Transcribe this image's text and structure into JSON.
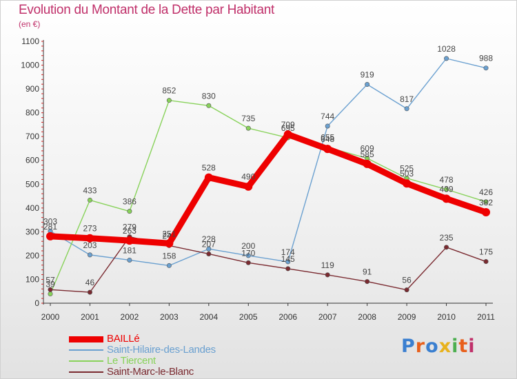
{
  "title": "Evolution du Montant de la Dette par Habitant",
  "unit": "(en €)",
  "logo": {
    "text": "Proxiti",
    "colors": [
      "#3a7fd0",
      "#e8601c",
      "#3a7fd0",
      "#e8b21c",
      "#4caf50",
      "#e8601c",
      "#c0306a"
    ]
  },
  "chart_data": {
    "type": "line",
    "x": [
      2000,
      2001,
      2002,
      2003,
      2004,
      2005,
      2006,
      2007,
      2008,
      2009,
      2010,
      2011
    ],
    "ylim": [
      0,
      1100
    ],
    "yticks": [
      0,
      100,
      200,
      300,
      400,
      500,
      600,
      700,
      800,
      900,
      1000,
      1100
    ],
    "grid": false,
    "legend_position": "bottom-left",
    "series": [
      {
        "name": "Saint-Hilaire-des-Landes",
        "color": "#6aa0d0",
        "values": [
          303,
          203,
          181,
          158,
          228,
          200,
          174,
          744,
          919,
          817,
          1028,
          988
        ]
      },
      {
        "name": "Le Tiercent",
        "color": "#88d25a",
        "values": [
          39,
          433,
          386,
          852,
          830,
          735,
          695,
          655,
          609,
          525,
          478,
          426
        ]
      },
      {
        "name": "Saint-Marc-le-Blanc",
        "color": "#7a2a30",
        "values": [
          57,
          46,
          279,
          242,
          207,
          170,
          145,
          119,
          91,
          56,
          235,
          175
        ]
      },
      {
        "name": "BAILLé",
        "color": "#ee0000",
        "values": [
          281,
          273,
          263,
          251,
          528,
          490,
          709,
          648,
          585,
          503,
          439,
          382
        ]
      }
    ]
  }
}
